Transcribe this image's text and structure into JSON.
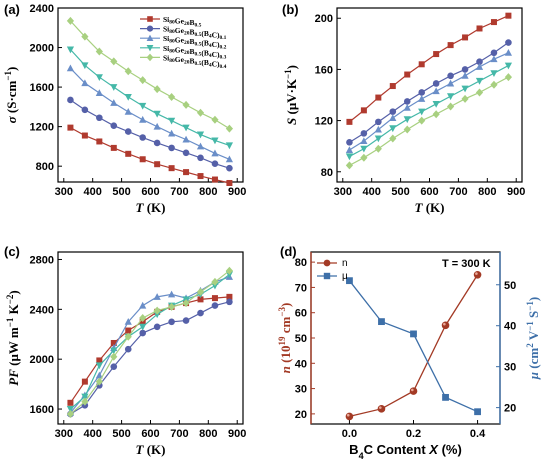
{
  "colors": {
    "s1": "#b03a2e",
    "s2": "#5560a8",
    "s3": "#6a8ec8",
    "s4": "#45b8a8",
    "s5": "#a8d080",
    "n": "#a33a25",
    "mu": "#3d6fa8"
  },
  "chart_data": [
    {
      "panel": "(a)",
      "type": "line",
      "xlabel": "T (K)",
      "ylabel": "σ (S·cm⁻¹)",
      "xlim": [
        280,
        920
      ],
      "ylim": [
        640,
        2400
      ],
      "xticks": [
        300,
        400,
        500,
        600,
        700,
        800,
        900
      ],
      "yticks": [
        800,
        1200,
        1600,
        2000,
        2400
      ],
      "legend_position": "top-right",
      "x": [
        323,
        373,
        423,
        473,
        523,
        573,
        623,
        673,
        723,
        773,
        823,
        873
      ],
      "series": [
        {
          "name": "Si80Ge20B0.5",
          "marker": "square",
          "values": [
            1190,
            1110,
            1050,
            985,
            925,
            870,
            820,
            780,
            740,
            700,
            665,
            630
          ]
        },
        {
          "name": "Si80Ge20B0.5(B4C)0.1",
          "marker": "circle",
          "values": [
            1470,
            1370,
            1290,
            1210,
            1150,
            1090,
            1035,
            985,
            935,
            885,
            825,
            780
          ]
        },
        {
          "name": "Si80Ge20B0.5(B4C)0.2",
          "marker": "triangle-up",
          "values": [
            1790,
            1640,
            1540,
            1440,
            1350,
            1270,
            1200,
            1130,
            1070,
            1000,
            930,
            870
          ]
        },
        {
          "name": "Si80Ge20B0.5(B4C)0.3",
          "marker": "triangle-down",
          "values": [
            1980,
            1820,
            1700,
            1600,
            1500,
            1410,
            1330,
            1260,
            1190,
            1120,
            1060,
            1010
          ]
        },
        {
          "name": "Si80Ge20B0.5(B4C)0.4",
          "marker": "diamond",
          "values": [
            2270,
            2110,
            1960,
            1860,
            1760,
            1670,
            1580,
            1500,
            1420,
            1340,
            1270,
            1180
          ]
        }
      ]
    },
    {
      "panel": "(b)",
      "type": "line",
      "xlabel": "T (K)",
      "ylabel": "S (μV·K⁻¹)",
      "xlim": [
        280,
        920
      ],
      "ylim": [
        72,
        208
      ],
      "xticks": [
        300,
        400,
        500,
        600,
        700,
        800,
        900
      ],
      "yticks": [
        80,
        120,
        160,
        200
      ],
      "x": [
        323,
        373,
        423,
        473,
        523,
        573,
        623,
        673,
        723,
        773,
        823,
        873
      ],
      "series": [
        {
          "name": "Si80Ge20B0.5",
          "marker": "square",
          "values": [
            119,
            128,
            138,
            147,
            156,
            164,
            172,
            179,
            185,
            192,
            197,
            202
          ]
        },
        {
          "name": "Si80Ge20B0.5(B4C)0.1",
          "marker": "circle",
          "values": [
            103,
            110,
            119,
            127,
            135,
            142,
            149,
            155,
            160,
            166,
            173,
            181
          ]
        },
        {
          "name": "Si80Ge20B0.5(B4C)0.2",
          "marker": "triangle-up",
          "values": [
            97,
            104,
            113,
            122,
            130,
            137,
            143,
            149,
            155,
            162,
            168,
            173
          ]
        },
        {
          "name": "Si80Ge20B0.5(B4C)0.3",
          "marker": "triangle-down",
          "values": [
            92,
            98,
            106,
            114,
            121,
            127,
            133,
            139,
            145,
            151,
            157,
            163
          ]
        },
        {
          "name": "Si80Ge20B0.5(B4C)0.4",
          "marker": "diamond",
          "values": [
            85,
            91,
            98,
            106,
            113,
            120,
            125,
            131,
            137,
            142,
            148,
            154
          ]
        }
      ]
    },
    {
      "panel": "(c)",
      "type": "line",
      "xlabel": "T (K)",
      "ylabel": "PF (μW m⁻¹ K⁻²)",
      "xlim": [
        280,
        920
      ],
      "ylim": [
        1480,
        2860
      ],
      "xticks": [
        300,
        400,
        500,
        600,
        700,
        800,
        900
      ],
      "yticks": [
        1600,
        2000,
        2400,
        2800
      ],
      "x": [
        323,
        373,
        423,
        473,
        523,
        573,
        623,
        673,
        723,
        773,
        823,
        873
      ],
      "series": [
        {
          "name": "Si80Ge20B0.5",
          "marker": "square",
          "values": [
            1650,
            1820,
            1990,
            2130,
            2230,
            2300,
            2380,
            2420,
            2450,
            2480,
            2490,
            2500
          ]
        },
        {
          "name": "Si80Ge20B0.5(B4C)0.1",
          "marker": "circle",
          "values": [
            1560,
            1630,
            1790,
            1940,
            2080,
            2210,
            2260,
            2300,
            2310,
            2370,
            2430,
            2460
          ]
        },
        {
          "name": "Si80Ge20B0.5(B4C)0.2",
          "marker": "triangle-up",
          "values": [
            1570,
            1710,
            1870,
            2090,
            2300,
            2430,
            2500,
            2520,
            2490,
            2550,
            2620,
            2660
          ]
        },
        {
          "name": "Si80Ge20B0.5(B4C)0.3",
          "marker": "triangle-down",
          "values": [
            1600,
            1700,
            1950,
            2070,
            2180,
            2260,
            2360,
            2430,
            2480,
            2520,
            2590,
            2680
          ]
        },
        {
          "name": "Si80Ge20B0.5(B4C)0.4",
          "marker": "diamond",
          "values": [
            1560,
            1660,
            1820,
            2020,
            2180,
            2330,
            2390,
            2420,
            2450,
            2540,
            2620,
            2710
          ]
        }
      ]
    },
    {
      "panel": "(d)",
      "type": "line",
      "xlabel": "B4C Content X (%)",
      "ylabel_left": "n (10¹⁹ cm⁻³)",
      "ylabel_right": "μ (cm² V⁻¹ S⁻¹)",
      "annotation": "T = 300 K",
      "x": [
        0,
        0.1,
        0.2,
        0.3,
        0.4
      ],
      "xlim": [
        -0.12,
        0.47
      ],
      "xticks": [
        0.0,
        0.2,
        0.4
      ],
      "ylim_left": [
        16,
        84
      ],
      "yticks_left": [
        20,
        30,
        40,
        50,
        60,
        70,
        80
      ],
      "ylim_right": [
        16,
        58
      ],
      "yticks_right": [
        20,
        30,
        40,
        50
      ],
      "legend_position": "top-left",
      "series": [
        {
          "name": "n",
          "axis": "left",
          "marker": "circle",
          "values": [
            19,
            22,
            29,
            55,
            75
          ]
        },
        {
          "name": "μ",
          "axis": "right",
          "marker": "square",
          "values": [
            51,
            41,
            38,
            22.5,
            19
          ]
        }
      ]
    }
  ],
  "legend_d": {
    "n": "n",
    "mu": "μ"
  }
}
